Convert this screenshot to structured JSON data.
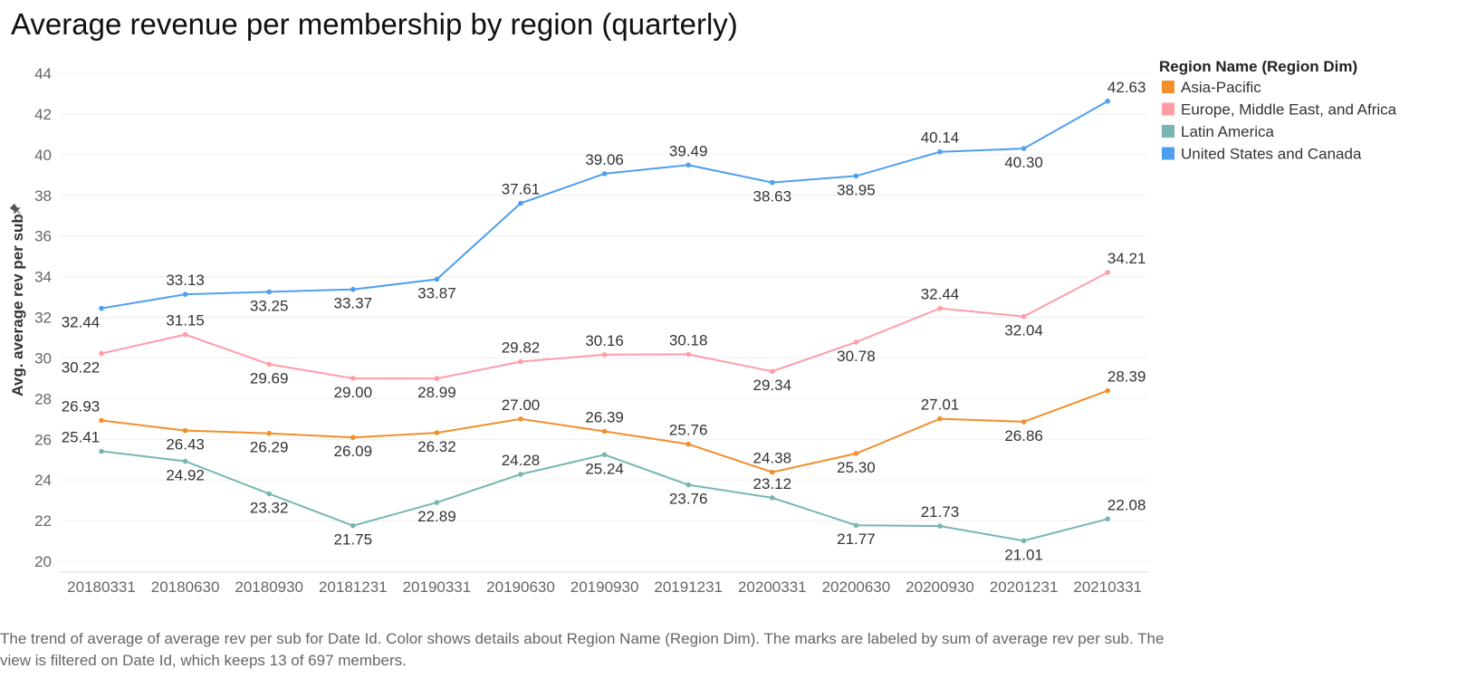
{
  "chart_data": {
    "type": "line",
    "title": "Average revenue per membership by region (quarterly)",
    "ylabel": "Avg. average rev per sub",
    "xlabel": "",
    "ylim": [
      20,
      44
    ],
    "yticks": [
      20,
      22,
      24,
      26,
      28,
      30,
      32,
      34,
      36,
      38,
      40,
      42,
      44
    ],
    "grid": true,
    "legend": {
      "title": "Region Name (Region Dim)",
      "placement": "right"
    },
    "categories": [
      "20180331",
      "20180630",
      "20180930",
      "20181231",
      "20190331",
      "20190630",
      "20190930",
      "20191231",
      "20200331",
      "20200630",
      "20200930",
      "20201231",
      "20210331"
    ],
    "series": [
      {
        "name": "Asia-Pacific",
        "color": "#f28e2b",
        "values": [
          26.93,
          26.43,
          26.29,
          26.09,
          26.32,
          27.0,
          26.39,
          25.76,
          24.38,
          25.3,
          27.01,
          26.86,
          28.39
        ],
        "labels": [
          "26.93",
          "26.43",
          "26.29",
          "26.09",
          "26.32",
          "27.00",
          "26.39",
          "25.76",
          "24.38",
          "25.30",
          "27.01",
          "26.86",
          "28.39"
        ],
        "label_pos": [
          "above",
          "below",
          "below",
          "below",
          "below",
          "above",
          "above",
          "above",
          "above",
          "below",
          "above",
          "below",
          "above"
        ]
      },
      {
        "name": "Europe, Middle East, and Africa",
        "color": "#ff9da7",
        "values": [
          30.22,
          31.15,
          29.69,
          29.0,
          28.99,
          29.82,
          30.16,
          30.18,
          29.34,
          30.78,
          32.44,
          32.04,
          34.21
        ],
        "labels": [
          "30.22",
          "31.15",
          "29.69",
          "29.00",
          "28.99",
          "29.82",
          "30.16",
          "30.18",
          "29.34",
          "30.78",
          "32.44",
          "32.04",
          "34.21"
        ],
        "label_pos": [
          "below",
          "above",
          "below",
          "below",
          "below",
          "above",
          "above",
          "above",
          "below",
          "below",
          "above",
          "below",
          "above"
        ]
      },
      {
        "name": "Latin America",
        "color": "#76b7b2",
        "values": [
          25.41,
          24.92,
          23.32,
          21.75,
          22.89,
          24.28,
          25.24,
          23.76,
          23.12,
          21.77,
          21.73,
          21.01,
          22.08
        ],
        "labels": [
          "25.41",
          "24.92",
          "23.32",
          "21.75",
          "22.89",
          "24.28",
          "25.24",
          "23.76",
          "23.12",
          "21.77",
          "21.73",
          "21.01",
          "22.08"
        ],
        "label_pos": [
          "above",
          "below",
          "below",
          "below",
          "below",
          "above",
          "below",
          "below",
          "above",
          "below",
          "above",
          "below",
          "above"
        ]
      },
      {
        "name": "United States and Canada",
        "color": "#4e9ff0",
        "values": [
          32.44,
          33.13,
          33.25,
          33.37,
          33.87,
          37.61,
          39.06,
          39.49,
          38.63,
          38.95,
          40.14,
          40.3,
          42.63
        ],
        "labels": [
          "32.44",
          "33.13",
          "33.25",
          "33.37",
          "33.87",
          "37.61",
          "39.06",
          "39.49",
          "38.63",
          "38.95",
          "40.14",
          "40.30",
          "42.63"
        ],
        "label_pos": [
          "below",
          "above",
          "below",
          "below",
          "below",
          "above",
          "above",
          "above",
          "below",
          "below",
          "above",
          "below",
          "above"
        ]
      }
    ]
  },
  "caption": "The trend of average of average rev per sub for Date Id.  Color shows details about Region Name (Region Dim).  The marks are labeled by sum of average rev per sub. The view is filtered on Date Id, which keeps 13 of 697 members."
}
